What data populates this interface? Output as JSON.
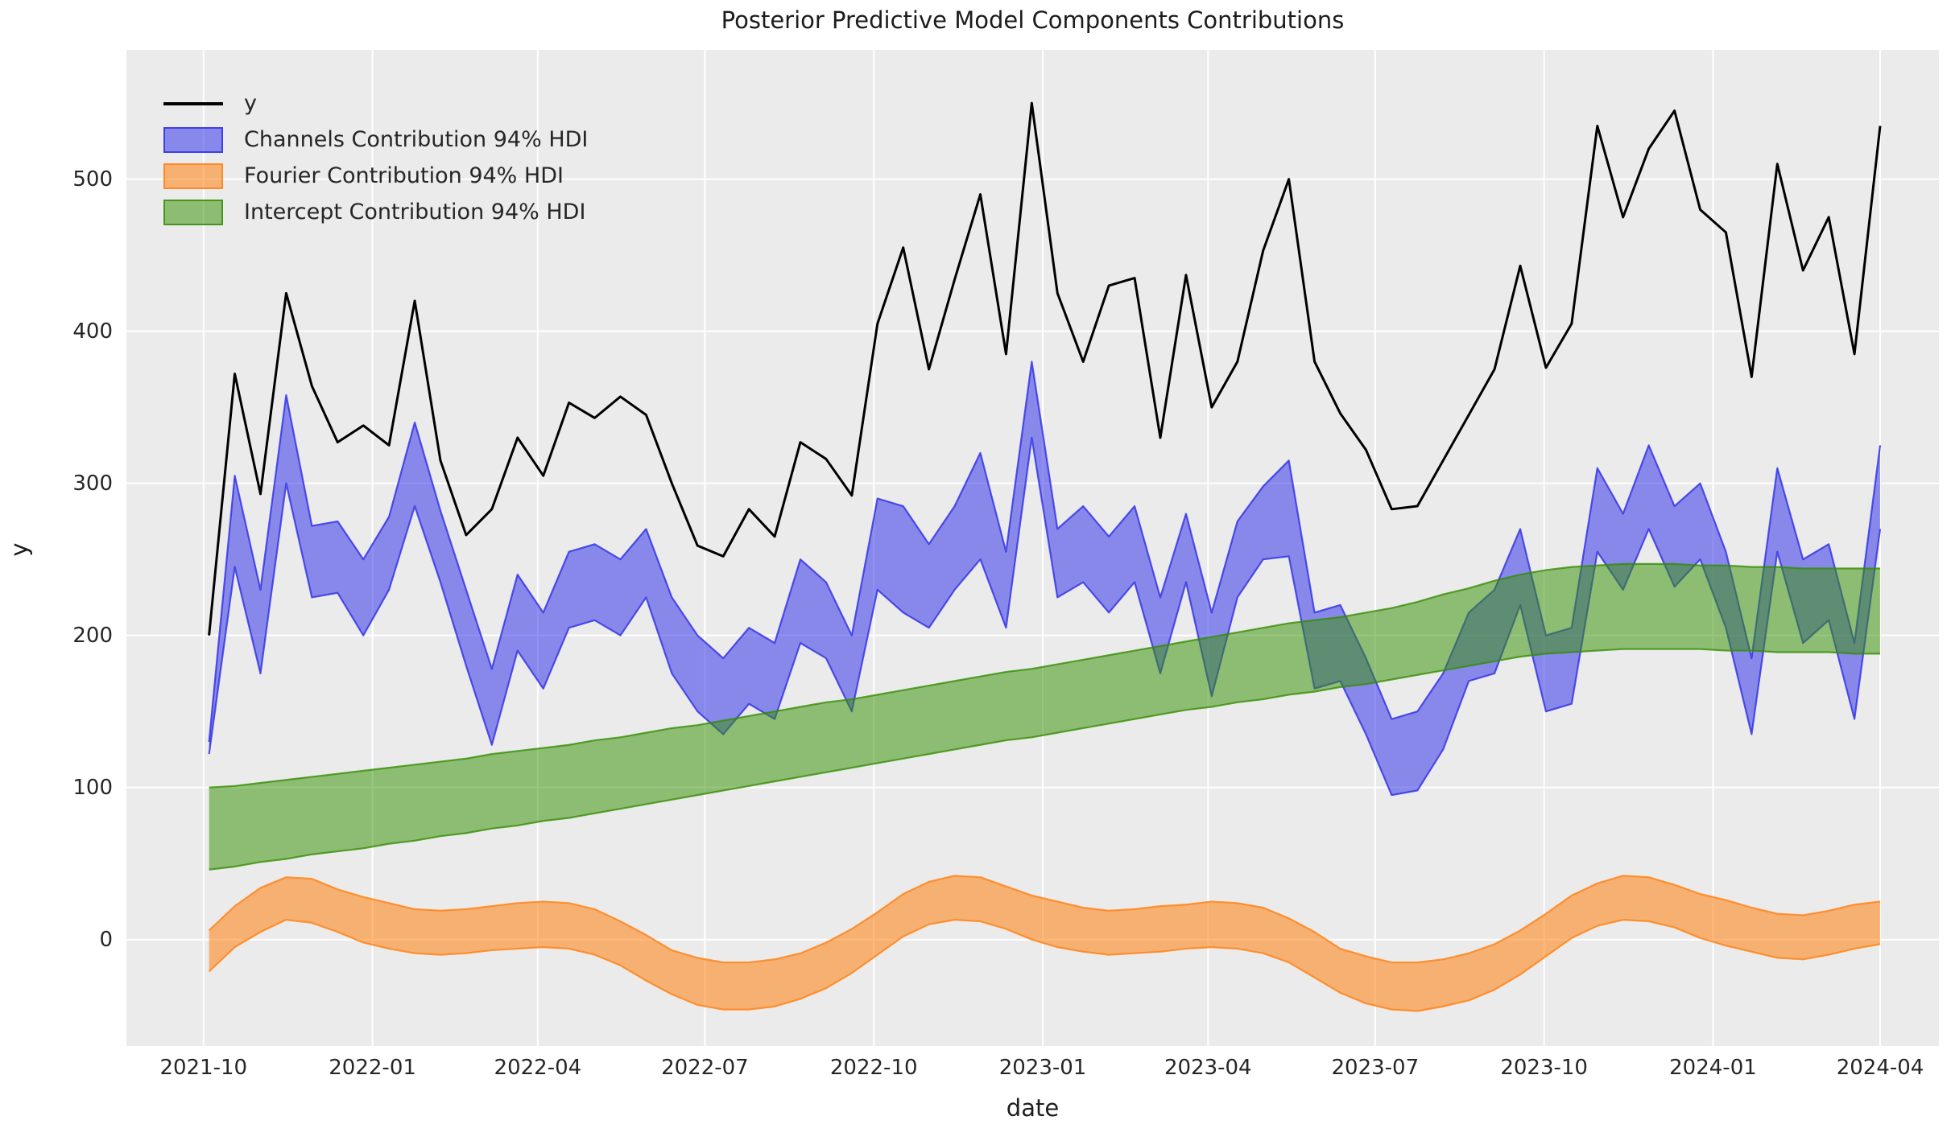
{
  "figure": {
    "title": "Posterior Predictive Model Components Contributions",
    "xlabel": "date",
    "ylabel": "y"
  },
  "legend": {
    "items": [
      {
        "label": "y",
        "swatch": "line",
        "series": "y"
      },
      {
        "label": "Channels Contribution 94% HDI",
        "swatch": "patch",
        "series": "channels"
      },
      {
        "label": "Fourier Contribution 94% HDI",
        "swatch": "patch",
        "series": "fourier"
      },
      {
        "label": "Intercept Contribution 94% HDI",
        "swatch": "patch",
        "series": "intercept"
      }
    ]
  },
  "axes": {
    "x_ticks": [
      {
        "label": "2021-10",
        "date": "2021-10-01"
      },
      {
        "label": "2022-01",
        "date": "2022-01-01"
      },
      {
        "label": "2022-04",
        "date": "2022-04-01"
      },
      {
        "label": "2022-07",
        "date": "2022-07-01"
      },
      {
        "label": "2022-10",
        "date": "2022-10-01"
      },
      {
        "label": "2023-01",
        "date": "2023-01-01"
      },
      {
        "label": "2023-04",
        "date": "2023-04-01"
      },
      {
        "label": "2023-07",
        "date": "2023-07-01"
      },
      {
        "label": "2023-10",
        "date": "2023-10-01"
      },
      {
        "label": "2024-01",
        "date": "2024-01-01"
      },
      {
        "label": "2024-04",
        "date": "2024-04-01"
      }
    ],
    "y_ticks": [
      0,
      100,
      200,
      300,
      400,
      500
    ],
    "xlim_dates": [
      "2021-08-20",
      "2024-05-03"
    ],
    "ylim": [
      -70,
      585
    ],
    "grid": true
  },
  "colors": {
    "figure_bg": "#ffffff",
    "plot_bg": "#ebebeb",
    "grid": "#ffffff",
    "text": "#262626",
    "y_line": "#000000",
    "channels_fill": "rgba(55,55,235,0.55)",
    "channels_edge": "rgba(45,45,230,0.80)",
    "fourier_fill": "rgba(255,127,14,0.55)",
    "fourier_edge": "rgba(255,127,14,0.78)",
    "intercept_fill": "rgba(55,145,5,0.52)",
    "intercept_edge": "rgba(50,140,0,0.78)"
  },
  "chart_data": {
    "type": "line",
    "title": "Posterior Predictive Model Components Contributions",
    "xlabel": "date",
    "ylabel": "y",
    "ylim": [
      -70,
      585
    ],
    "legend_position": "upper left",
    "grid": true,
    "x_dates": [
      "2021-10-04",
      "2021-10-18",
      "2021-11-01",
      "2021-11-15",
      "2021-11-29",
      "2021-12-13",
      "2021-12-27",
      "2022-01-10",
      "2022-01-24",
      "2022-02-07",
      "2022-02-21",
      "2022-03-07",
      "2022-03-21",
      "2022-04-04",
      "2022-04-18",
      "2022-05-02",
      "2022-05-16",
      "2022-05-30",
      "2022-06-13",
      "2022-06-27",
      "2022-07-11",
      "2022-07-25",
      "2022-08-08",
      "2022-08-22",
      "2022-09-05",
      "2022-09-19",
      "2022-10-03",
      "2022-10-17",
      "2022-10-31",
      "2022-11-14",
      "2022-11-28",
      "2022-12-12",
      "2022-12-26",
      "2023-01-09",
      "2023-01-23",
      "2023-02-06",
      "2023-02-20",
      "2023-03-06",
      "2023-03-20",
      "2023-04-03",
      "2023-04-17",
      "2023-05-01",
      "2023-05-15",
      "2023-05-29",
      "2023-06-12",
      "2023-06-26",
      "2023-07-10",
      "2023-07-24",
      "2023-08-07",
      "2023-08-21",
      "2023-09-04",
      "2023-09-18",
      "2023-10-02",
      "2023-10-16",
      "2023-10-30",
      "2023-11-13",
      "2023-11-27",
      "2023-12-11",
      "2023-12-25",
      "2024-01-08",
      "2024-01-22",
      "2024-02-05",
      "2024-02-19",
      "2024-03-04",
      "2024-03-18",
      "2024-04-01"
    ],
    "series": [
      {
        "name": "y",
        "type": "line",
        "values": [
          200,
          372,
          293,
          425,
          364,
          327,
          338,
          325,
          420,
          315,
          266,
          283,
          330,
          305,
          353,
          343,
          357,
          345,
          300,
          259,
          252,
          283,
          265,
          327,
          316,
          292,
          405,
          455,
          375,
          434,
          490,
          385,
          550,
          425,
          380,
          430,
          435,
          330,
          437,
          350,
          380,
          453,
          500,
          380,
          346,
          322,
          283,
          285,
          315,
          345,
          375,
          443,
          376,
          405,
          535,
          475,
          520,
          545,
          480,
          465,
          370,
          510,
          440,
          475,
          385,
          535
        ]
      },
      {
        "name": "Channels Contribution 94% HDI",
        "type": "band",
        "lower": [
          122,
          245,
          175,
          300,
          225,
          228,
          200,
          230,
          285,
          235,
          180,
          128,
          190,
          165,
          205,
          210,
          200,
          225,
          175,
          150,
          135,
          155,
          145,
          195,
          185,
          150,
          230,
          215,
          205,
          230,
          250,
          205,
          330,
          225,
          235,
          215,
          235,
          175,
          235,
          160,
          225,
          250,
          252,
          165,
          170,
          135,
          95,
          98,
          125,
          170,
          175,
          220,
          150,
          155,
          255,
          230,
          270,
          232,
          250,
          205,
          135,
          255,
          195,
          210,
          145,
          270
        ],
        "upper": [
          130,
          305,
          230,
          358,
          272,
          275,
          250,
          278,
          340,
          282,
          230,
          178,
          240,
          215,
          255,
          260,
          250,
          270,
          225,
          200,
          185,
          205,
          195,
          250,
          235,
          200,
          290,
          285,
          260,
          285,
          320,
          255,
          380,
          270,
          285,
          265,
          285,
          225,
          280,
          215,
          275,
          298,
          315,
          215,
          220,
          185,
          145,
          150,
          175,
          215,
          230,
          270,
          200,
          205,
          310,
          280,
          325,
          285,
          300,
          255,
          185,
          310,
          250,
          260,
          195,
          325
        ]
      },
      {
        "name": "Fourier Contribution 94% HDI",
        "type": "band",
        "lower": [
          -21,
          -5,
          5,
          13,
          11,
          5,
          -2,
          -6,
          -9,
          -10,
          -9,
          -7,
          -6,
          -5,
          -6,
          -10,
          -17,
          -27,
          -36,
          -43,
          -46,
          -46,
          -44,
          -39,
          -32,
          -22,
          -10,
          2,
          10,
          13,
          12,
          7,
          0,
          -5,
          -8,
          -10,
          -9,
          -8,
          -6,
          -5,
          -6,
          -9,
          -15,
          -25,
          -35,
          -42,
          -46,
          -47,
          -44,
          -40,
          -33,
          -23,
          -11,
          1,
          9,
          13,
          12,
          8,
          1,
          -4,
          -8,
          -12,
          -13,
          -10,
          -6,
          -3
        ],
        "upper": [
          6,
          22,
          34,
          41,
          40,
          33,
          28,
          24,
          20,
          19,
          20,
          22,
          24,
          25,
          24,
          20,
          12,
          3,
          -7,
          -12,
          -15,
          -15,
          -13,
          -9,
          -2,
          7,
          18,
          30,
          38,
          42,
          41,
          35,
          29,
          25,
          21,
          19,
          20,
          22,
          23,
          25,
          24,
          21,
          14,
          5,
          -6,
          -11,
          -15,
          -15,
          -13,
          -9,
          -3,
          6,
          17,
          29,
          37,
          42,
          41,
          36,
          30,
          26,
          21,
          17,
          16,
          19,
          23,
          25
        ]
      },
      {
        "name": "Intercept Contribution 94% HDI",
        "type": "band",
        "lower": [
          46,
          48,
          51,
          53,
          56,
          58,
          60,
          63,
          65,
          68,
          70,
          73,
          75,
          78,
          80,
          83,
          86,
          89,
          92,
          95,
          98,
          101,
          104,
          107,
          110,
          113,
          116,
          119,
          122,
          125,
          128,
          131,
          133,
          136,
          139,
          142,
          145,
          148,
          151,
          153,
          156,
          158,
          161,
          163,
          166,
          168,
          171,
          174,
          177,
          180,
          183,
          186,
          188,
          189,
          190,
          191,
          191,
          191,
          191,
          190,
          190,
          189,
          189,
          189,
          188,
          188
        ],
        "upper": [
          100,
          101,
          103,
          105,
          107,
          109,
          111,
          113,
          115,
          117,
          119,
          122,
          124,
          126,
          128,
          131,
          133,
          136,
          139,
          141,
          144,
          147,
          150,
          153,
          156,
          158,
          161,
          164,
          167,
          170,
          173,
          176,
          178,
          181,
          184,
          187,
          190,
          193,
          196,
          199,
          202,
          205,
          208,
          210,
          212,
          215,
          218,
          222,
          227,
          231,
          236,
          240,
          243,
          245,
          246,
          247,
          247,
          247,
          246,
          246,
          245,
          245,
          244,
          244,
          244,
          244
        ]
      }
    ]
  }
}
